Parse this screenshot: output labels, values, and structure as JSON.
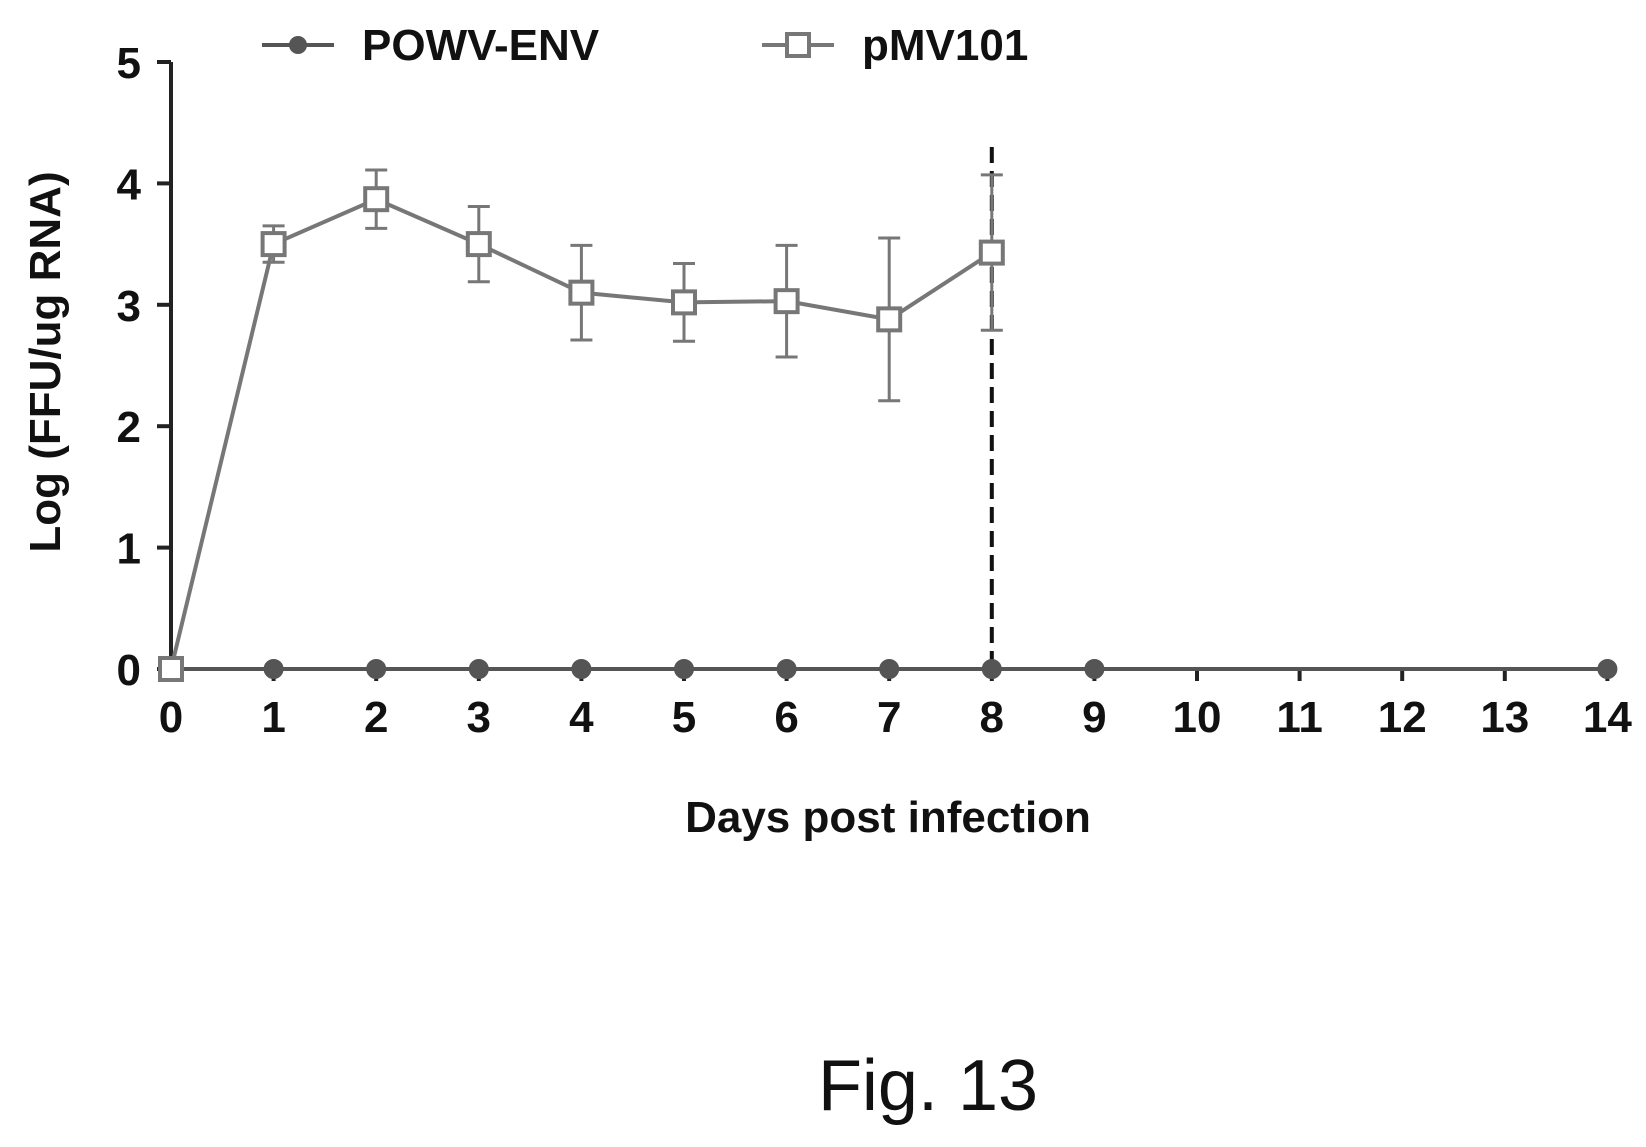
{
  "chart_data": {
    "type": "line",
    "title": "",
    "xlabel": "Days post infection",
    "ylabel": "Log (FFU/ug RNA)",
    "categories": [
      "0",
      "1",
      "2",
      "3",
      "4",
      "5",
      "6",
      "7",
      "8",
      "9",
      "10",
      "11",
      "12",
      "13",
      "14"
    ],
    "ylim": [
      0,
      5
    ],
    "yticks": [
      "0",
      "1",
      "2",
      "3",
      "4",
      "5"
    ],
    "grid": false,
    "legend_position": "top",
    "reference_line": {
      "category": "8",
      "style": "dashed"
    },
    "series": [
      {
        "name": "POWV-ENV",
        "marker": "filled-circle",
        "color": "#555555",
        "values": [
          0,
          0,
          0,
          0,
          0,
          0,
          0,
          0,
          0,
          0,
          null,
          null,
          null,
          null,
          0
        ]
      },
      {
        "name": "pMV101",
        "marker": "open-square",
        "color": "#777777",
        "values": [
          0,
          3.5,
          3.87,
          3.5,
          3.1,
          3.02,
          3.03,
          2.88,
          3.43,
          null,
          null,
          null,
          null,
          null,
          null
        ],
        "error": [
          0,
          0.15,
          0.24,
          0.31,
          0.39,
          0.32,
          0.46,
          0.67,
          0.64,
          null,
          null,
          null,
          null,
          null,
          null
        ]
      }
    ]
  },
  "caption": "Fig. 13"
}
